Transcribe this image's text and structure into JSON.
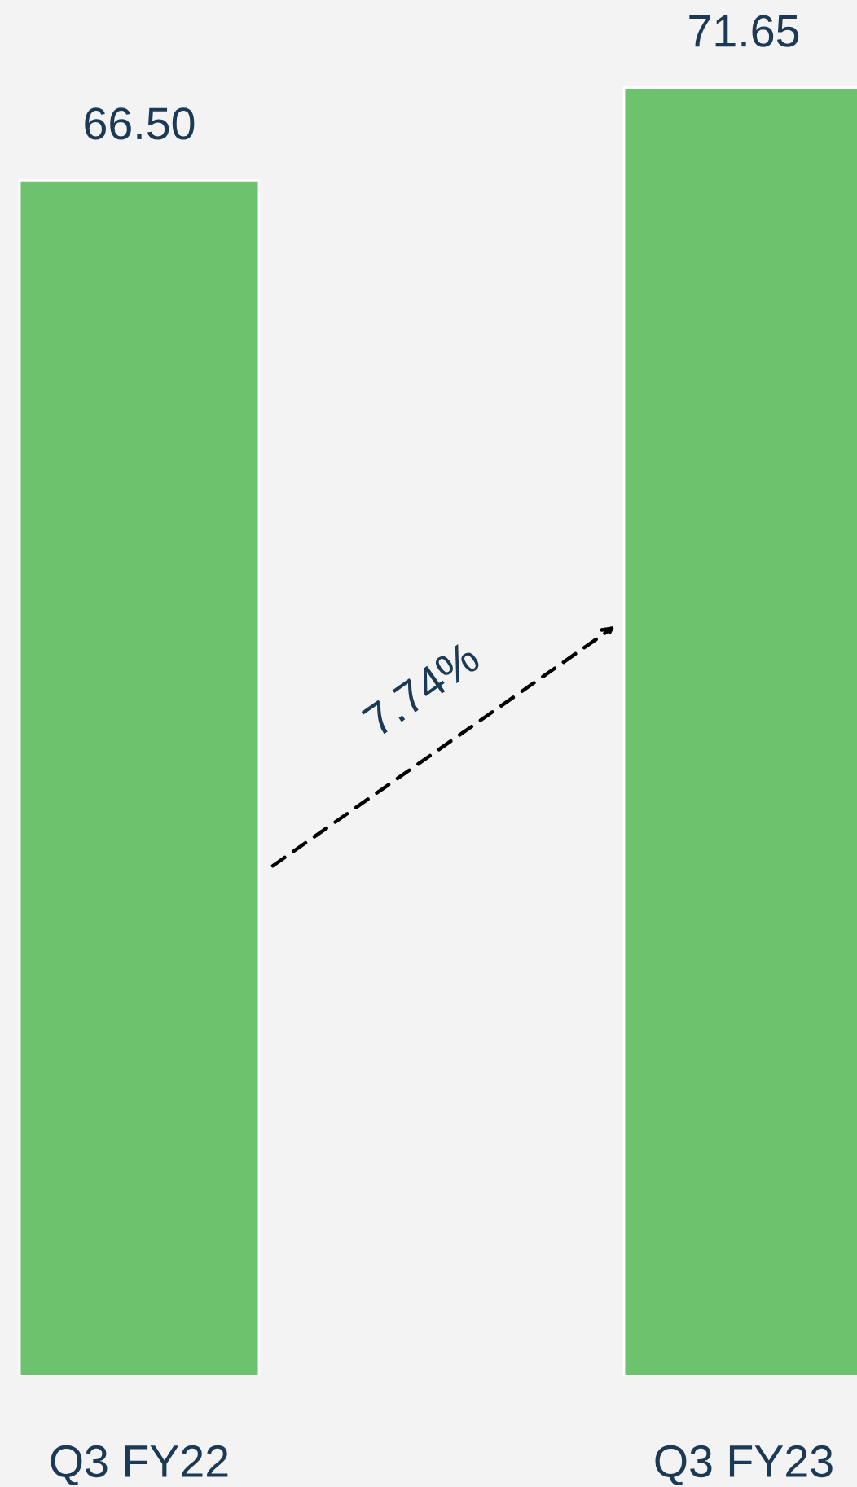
{
  "chart_data": {
    "type": "bar",
    "categories": [
      "Q3 FY22",
      "Q3 FY23"
    ],
    "values": [
      66.5,
      71.65
    ],
    "value_labels": [
      "66.50",
      "71.65"
    ],
    "color": "#6dc36d",
    "annotations": [
      "7.74%"
    ],
    "tick_labels": "x",
    "grid": false,
    "legend": false
  }
}
